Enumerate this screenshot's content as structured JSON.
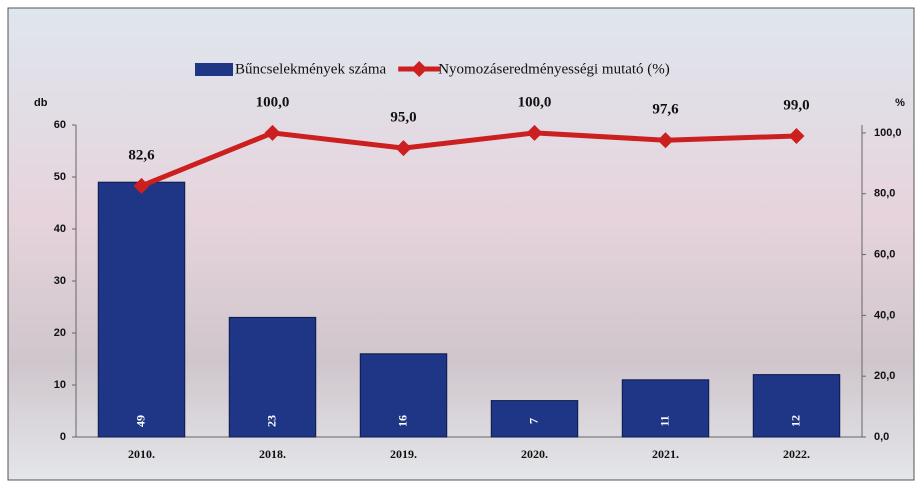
{
  "chart_data": {
    "type": "bar-line",
    "categories": [
      "2010.",
      "2018.",
      "2019.",
      "2020.",
      "2021.",
      "2022."
    ],
    "series": [
      {
        "name": "Bűncselekmények száma",
        "type": "bar",
        "color": "#1f3585",
        "values": [
          49,
          23,
          16,
          7,
          11,
          12
        ]
      },
      {
        "name": "Nyomozáseredményességi mutató (%)",
        "type": "line",
        "axis": "y2",
        "color": "#cc2020",
        "values": [
          82.6,
          100.0,
          95.0,
          100.0,
          97.6,
          99.0
        ],
        "value_labels": [
          "82,6",
          "100,0",
          "95,0",
          "100,0",
          "97,6",
          "99,0"
        ]
      }
    ],
    "y_label": "db",
    "y2_label": "%",
    "ylim": [
      0,
      60
    ],
    "yticks": [
      0,
      10,
      20,
      30,
      40,
      50,
      60
    ],
    "y2lim": [
      0,
      102.6
    ],
    "y2ticks": [
      {
        "value": 0,
        "label": "0,0"
      },
      {
        "value": 20,
        "label": "20,0"
      },
      {
        "value": 40,
        "label": "40,0"
      },
      {
        "value": 60,
        "label": "60,0"
      },
      {
        "value": 80,
        "label": "80,0"
      },
      {
        "value": 100,
        "label": "100,0"
      }
    ],
    "legend": "top"
  }
}
